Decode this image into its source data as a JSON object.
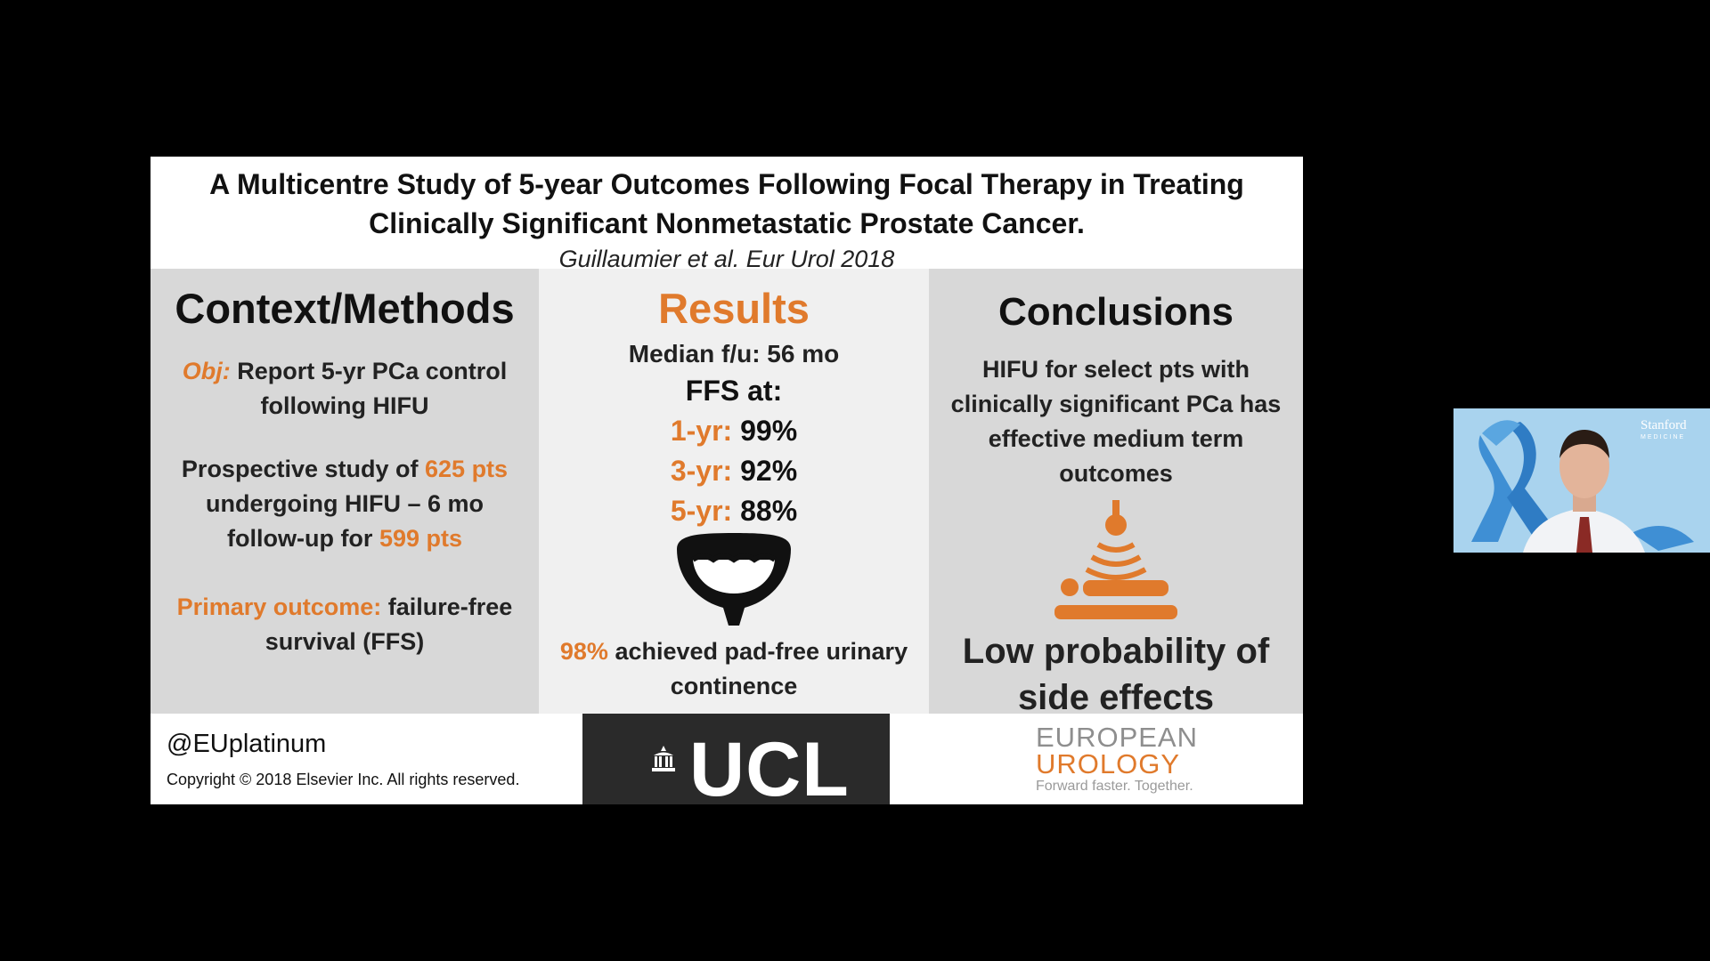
{
  "slide": {
    "title_line1": "A Multicentre Study of 5-year Outcomes Following Focal Therapy in Treating",
    "title_line2": "Clinically Significant Nonmetastatic Prostate Cancer.",
    "citation": "Guillaumier et al. Eur Urol 2018",
    "left": {
      "heading": "Context/Methods",
      "obj_label": "Obj:",
      "obj_text": "Report 5-yr PCa control following HIFU",
      "study_pre": "Prospective study of",
      "study_pts": "625 pts",
      "study_mid": "undergoing HIFU – 6 mo follow-up for",
      "study_followup": "599 pts",
      "primary_label": "Primary outcome:",
      "primary_text": "failure-free survival (FFS)"
    },
    "middle": {
      "heading": "Results",
      "median": "Median f/u: 56 mo",
      "ffs_at": "FFS at:",
      "rates": [
        {
          "label": "1-yr:",
          "value": "99%"
        },
        {
          "label": "3-yr:",
          "value": "92%"
        },
        {
          "label": "5-yr:",
          "value": "88%"
        }
      ],
      "continence_pct": "98%",
      "continence_text": "achieved pad-free urinary continence",
      "icon": "bladder-icon"
    },
    "right": {
      "heading": "Conclusions",
      "text": "HIFU for select pts with clinically significant PCa has effective medium term outcomes",
      "icon": "hifu-treatment-icon",
      "side_effects": "Low probability of side effects"
    },
    "footer": {
      "handle": "@EUplatinum",
      "copyright": "Copyright © 2018 Elsevier Inc. All rights reserved.",
      "ucl_logo": "UCL",
      "eu_logo_line1": "EUROPEAN",
      "eu_logo_line2": "UROLOGY",
      "eu_tagline": "Forward faster. Together."
    }
  },
  "webcam": {
    "logo_name": "Stanford",
    "logo_sub": "MEDICINE"
  },
  "colors": {
    "accent": "#e07a2c",
    "panel_dark": "#d8d8d8",
    "panel_light": "#f0f0f0",
    "background": "#000000"
  }
}
